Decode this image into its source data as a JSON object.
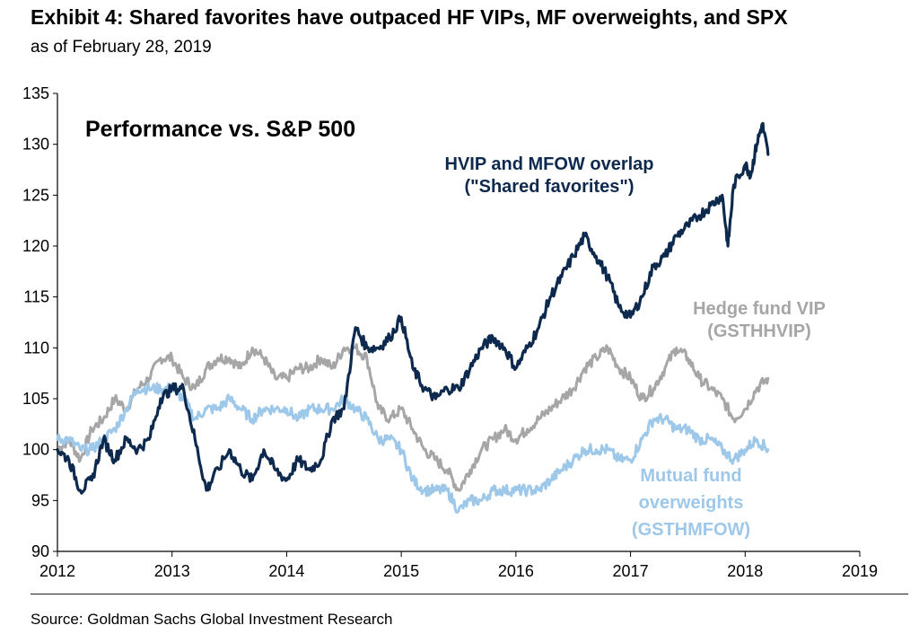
{
  "header": {
    "title": "Exhibit 4: Shared favorites have outpaced HF VIPs, MF overweights, and SPX",
    "subtitle": "as of February 28, 2019"
  },
  "footer": {
    "source": "Source: Goldman Sachs Global Investment Research"
  },
  "colors": {
    "shared": "#0d2a4e",
    "hedge": "#a6a6a6",
    "mutual": "#9ec8ea"
  },
  "chart_data": {
    "type": "line",
    "title": "Performance vs. S&P 500",
    "xlim": [
      2012,
      2019
    ],
    "ylim": [
      90,
      135
    ],
    "x_ticks": [
      "2012",
      "2013",
      "2014",
      "2015",
      "2016",
      "2017",
      "2018",
      "2019"
    ],
    "y_ticks": [
      "135",
      "130",
      "125",
      "120",
      "115",
      "110",
      "105",
      "100",
      "95",
      "90"
    ],
    "grid": false,
    "annotations": [
      {
        "series": "shared",
        "lines": [
          "HVIP and MFOW overlap",
          "(\"Shared favorites\")"
        ]
      },
      {
        "series": "hedge",
        "lines": [
          "Hedge fund VIP",
          "(GSTHHVIP)"
        ]
      },
      {
        "series": "mutual",
        "lines": [
          "Mutual fund",
          "overweights",
          "(GSTHMFOW)"
        ]
      }
    ],
    "series": [
      {
        "key": "shared",
        "x": [
          2012.0,
          2012.1,
          2012.2,
          2012.3,
          2012.4,
          2012.5,
          2012.6,
          2012.7,
          2012.8,
          2012.9,
          2013.0,
          2013.1,
          2013.2,
          2013.3,
          2013.35,
          2013.5,
          2013.6,
          2013.7,
          2013.8,
          2013.9,
          2014.0,
          2014.1,
          2014.2,
          2014.3,
          2014.4,
          2014.5,
          2014.6,
          2014.7,
          2014.8,
          2014.9,
          2015.0,
          2015.1,
          2015.2,
          2015.3,
          2015.4,
          2015.5,
          2015.6,
          2015.7,
          2015.8,
          2015.9,
          2016.0,
          2016.1,
          2016.2,
          2016.3,
          2016.4,
          2016.5,
          2016.6,
          2016.7,
          2016.8,
          2016.9,
          2017.0,
          2017.1,
          2017.2,
          2017.3,
          2017.4,
          2017.5,
          2017.6,
          2017.7,
          2017.8,
          2017.85,
          2017.9,
          2018.0,
          2018.05,
          2018.1,
          2018.15,
          2018.2
        ],
        "values": [
          100,
          99,
          96,
          97,
          101,
          99,
          101,
          100,
          101,
          105,
          106,
          106,
          101,
          96,
          97,
          100,
          98,
          97,
          100,
          98,
          97,
          99,
          98,
          99,
          103,
          104,
          112,
          110,
          110,
          111,
          113,
          108,
          106,
          105,
          106,
          106,
          108,
          110,
          111,
          110,
          108,
          110,
          112,
          115,
          117,
          119,
          121,
          119,
          117,
          114,
          113,
          115,
          118,
          119,
          121,
          122,
          123,
          124,
          125,
          120,
          126,
          128,
          127,
          130,
          132,
          129
        ]
      },
      {
        "key": "hedge",
        "x": [
          2012.0,
          2012.1,
          2012.2,
          2012.3,
          2012.4,
          2012.5,
          2012.6,
          2012.7,
          2012.8,
          2012.9,
          2013.0,
          2013.1,
          2013.2,
          2013.3,
          2013.4,
          2013.5,
          2013.6,
          2013.7,
          2013.8,
          2013.9,
          2014.0,
          2014.1,
          2014.2,
          2014.3,
          2014.4,
          2014.5,
          2014.6,
          2014.7,
          2014.8,
          2014.9,
          2015.0,
          2015.1,
          2015.2,
          2015.3,
          2015.4,
          2015.5,
          2015.6,
          2015.7,
          2015.8,
          2015.9,
          2016.0,
          2016.1,
          2016.2,
          2016.3,
          2016.4,
          2016.5,
          2016.6,
          2016.7,
          2016.8,
          2016.9,
          2017.0,
          2017.1,
          2017.2,
          2017.3,
          2017.4,
          2017.5,
          2017.6,
          2017.7,
          2017.8,
          2017.9,
          2018.0,
          2018.1,
          2018.2
        ],
        "values": [
          100,
          101,
          99,
          102,
          103,
          105,
          104,
          106,
          107,
          109,
          109,
          107,
          106,
          108,
          109,
          109,
          108,
          110,
          109,
          107,
          107,
          108,
          108,
          109,
          108,
          110,
          110,
          109,
          104,
          103,
          104,
          102,
          100,
          99,
          98,
          96,
          98,
          100,
          101,
          102,
          101,
          102,
          103,
          104,
          105,
          106,
          108,
          109,
          110,
          108,
          107,
          105,
          106,
          108,
          110,
          109,
          107,
          106,
          105,
          103,
          104,
          106,
          107
        ]
      },
      {
        "key": "mutual",
        "x": [
          2012.0,
          2012.1,
          2012.2,
          2012.3,
          2012.4,
          2012.5,
          2012.6,
          2012.7,
          2012.8,
          2012.9,
          2013.0,
          2013.1,
          2013.2,
          2013.3,
          2013.4,
          2013.5,
          2013.6,
          2013.7,
          2013.8,
          2013.9,
          2014.0,
          2014.1,
          2014.2,
          2014.3,
          2014.4,
          2014.5,
          2014.6,
          2014.7,
          2014.8,
          2014.9,
          2015.0,
          2015.1,
          2015.2,
          2015.3,
          2015.4,
          2015.5,
          2015.6,
          2015.7,
          2015.8,
          2015.9,
          2016.0,
          2016.1,
          2016.2,
          2016.3,
          2016.4,
          2016.5,
          2016.6,
          2016.7,
          2016.8,
          2016.9,
          2017.0,
          2017.1,
          2017.2,
          2017.3,
          2017.4,
          2017.5,
          2017.6,
          2017.7,
          2017.8,
          2017.9,
          2018.0,
          2018.1,
          2018.2
        ],
        "values": [
          101,
          101,
          100,
          100,
          101,
          102,
          104,
          106,
          106,
          106,
          106,
          105,
          103,
          104,
          104,
          105,
          104,
          103,
          104,
          104,
          104,
          103,
          104,
          104,
          104,
          105,
          104,
          103,
          101,
          101,
          100,
          97,
          96,
          96,
          96,
          94,
          95,
          95,
          96,
          96,
          96,
          96,
          96,
          97,
          98,
          99,
          100,
          100,
          100,
          99,
          99,
          101,
          103,
          103,
          102,
          102,
          101,
          101,
          100,
          99,
          100,
          101,
          100
        ]
      }
    ]
  }
}
